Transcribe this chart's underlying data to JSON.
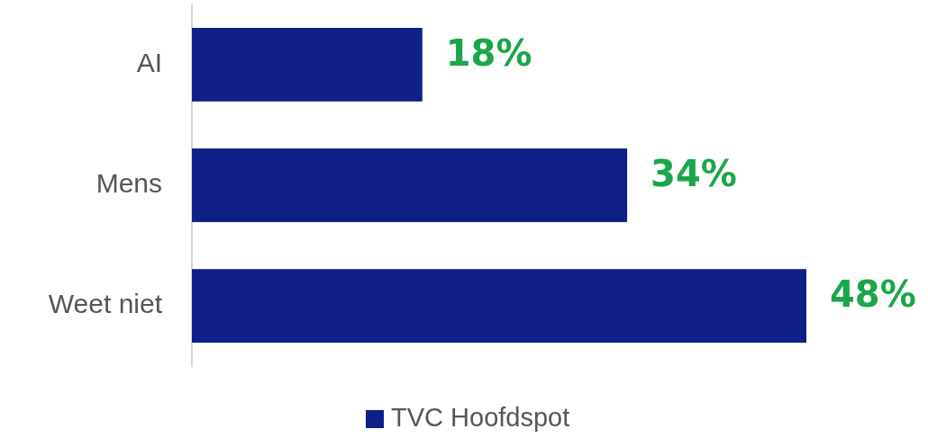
{
  "chart_data": {
    "type": "bar",
    "orientation": "horizontal",
    "categories": [
      "AI",
      "Mens",
      "Weet niet"
    ],
    "series": [
      {
        "name": "TVC Hoofdspot",
        "color": "#0e1f87",
        "values": [
          18,
          34,
          48
        ],
        "value_labels": [
          "18%",
          "34%",
          "48%"
        ]
      }
    ],
    "legend": "bottom"
  }
}
